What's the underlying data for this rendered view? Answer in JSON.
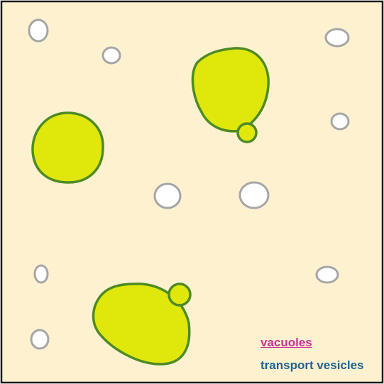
{
  "colors": {
    "cytoplasm": "#fdf1cf",
    "frame": "#1a1a1a",
    "vacuole_fill": "#dfe80a",
    "vacuole_outline": "#4e8a24",
    "vesicle_fill": "#ffffff",
    "vesicle_outline": "#a6a6a6",
    "vacuoles_label": "#cc3399",
    "vesicles_label": "#1f6391"
  },
  "legend": {
    "vacuoles": "vacuoles",
    "transport_vesicles": "transport vesicles"
  }
}
